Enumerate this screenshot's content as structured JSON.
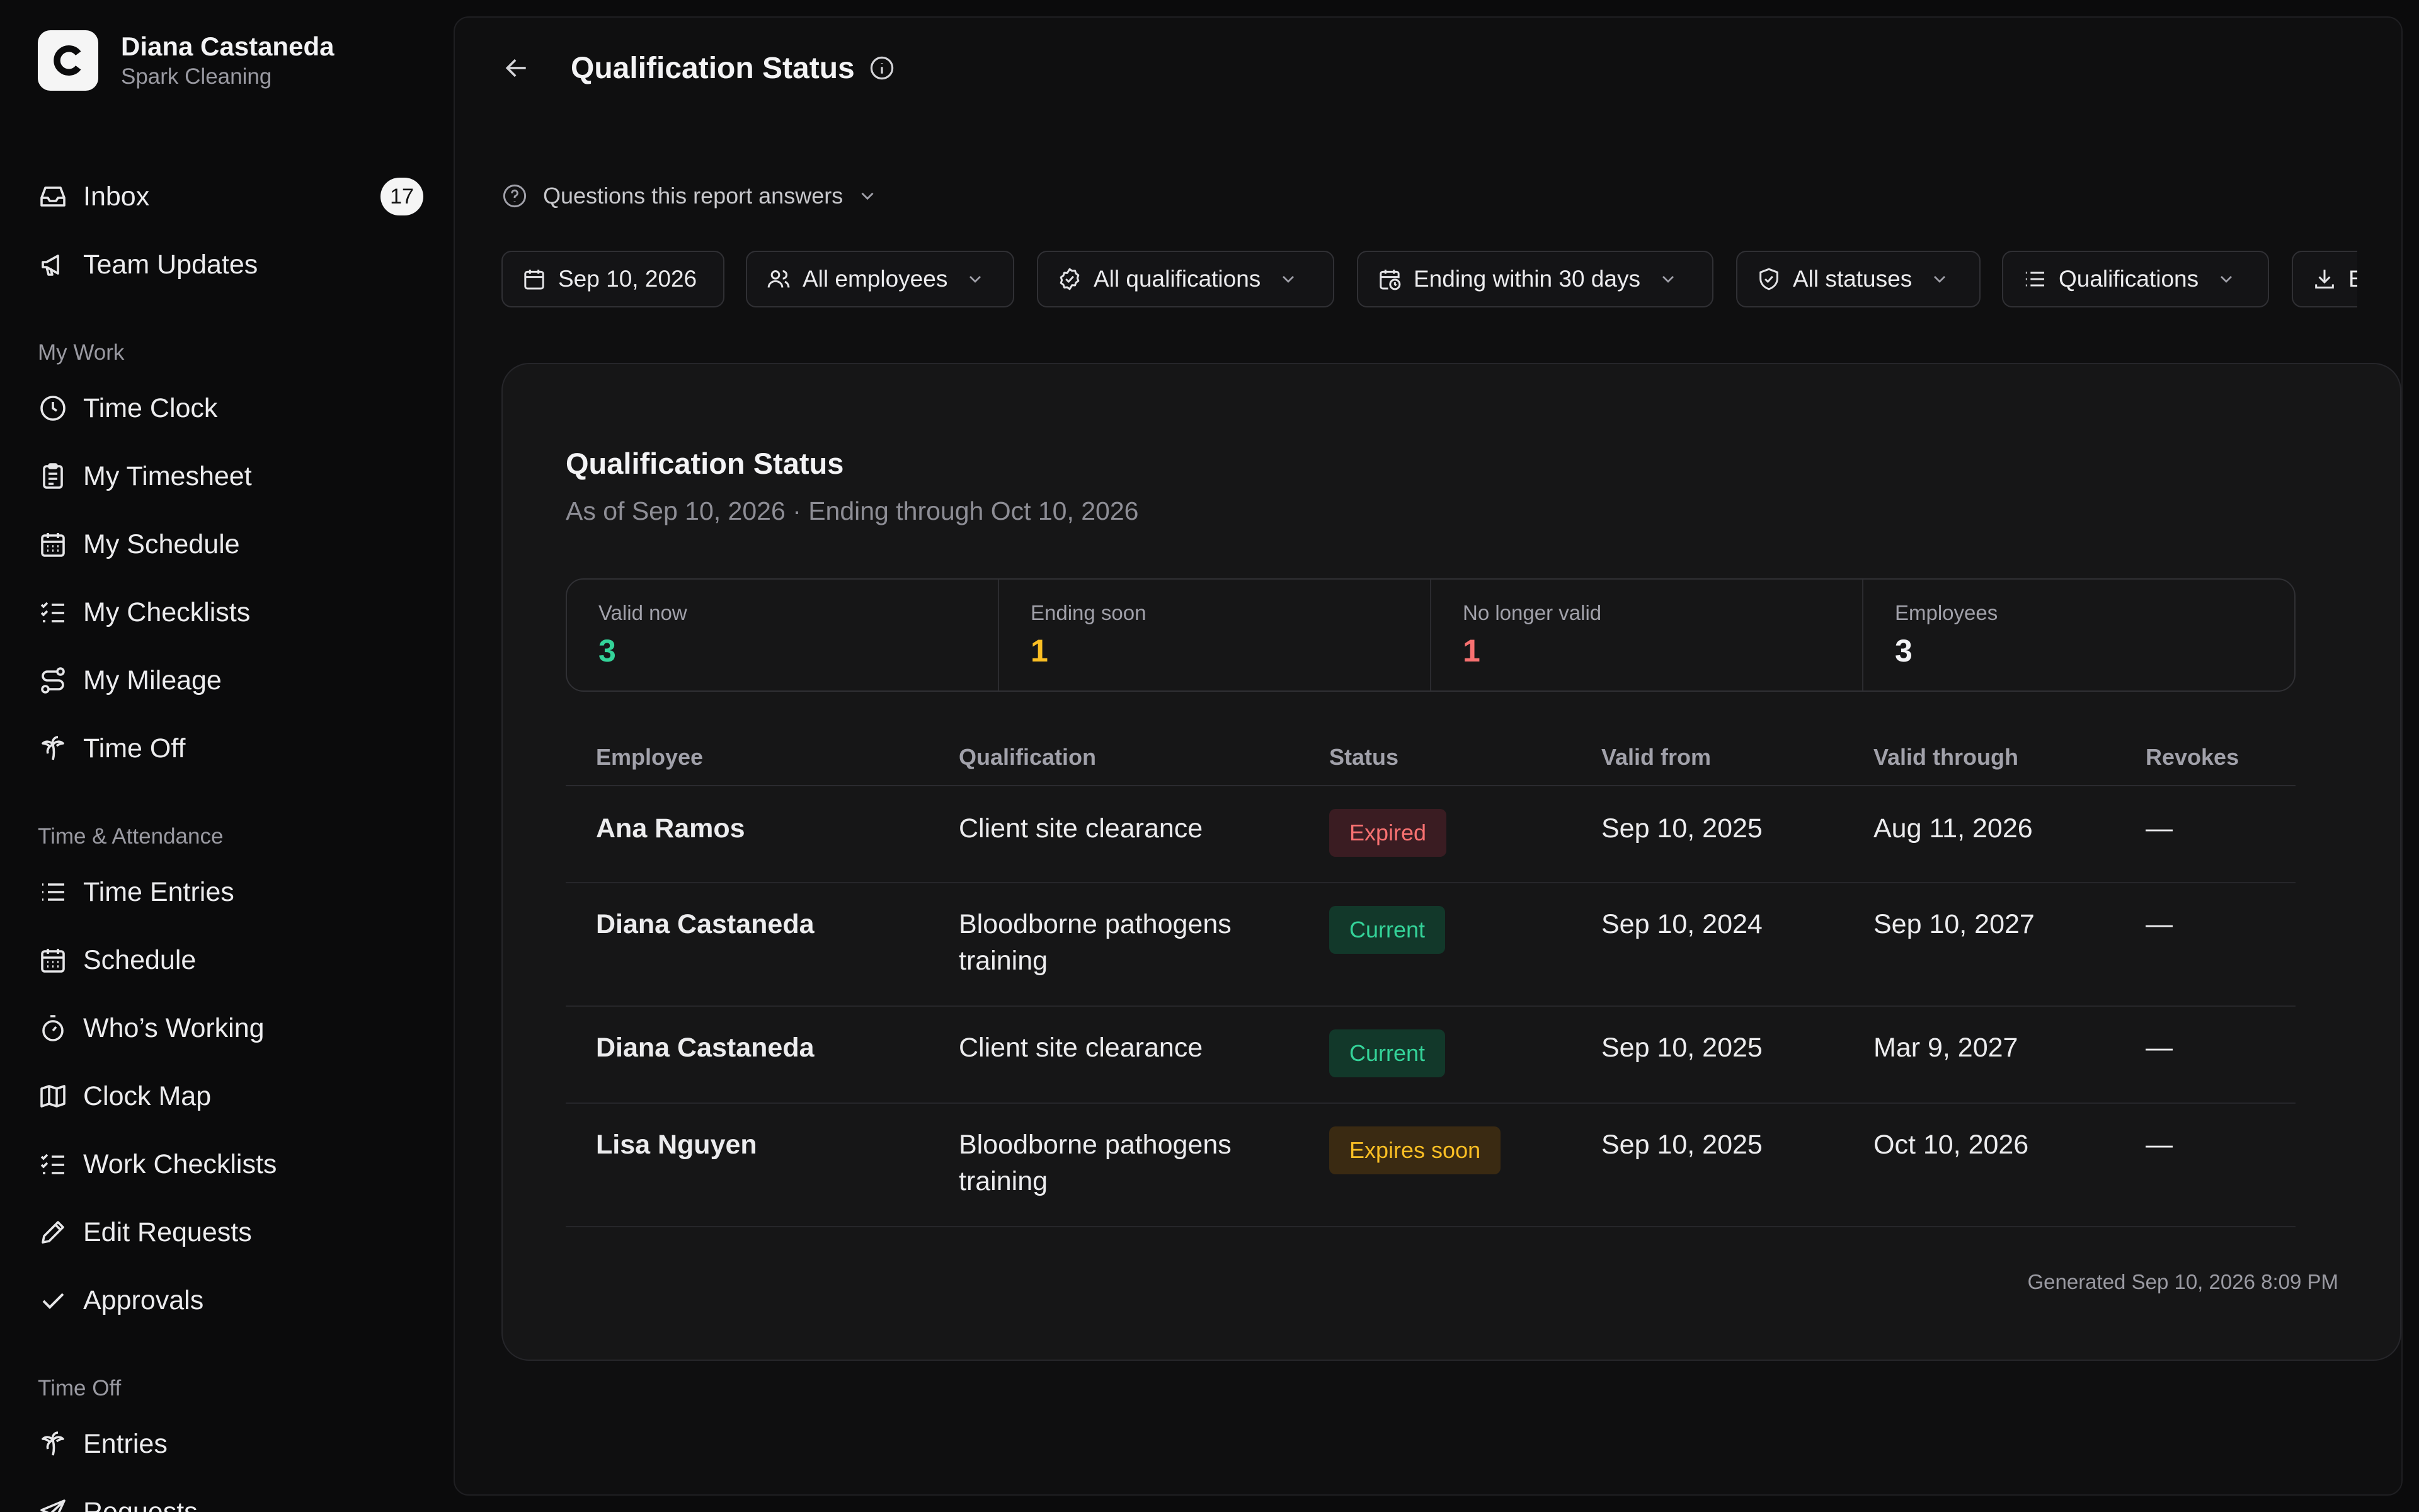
{
  "brand": {
    "name": "Diana Castaneda",
    "org": "Spark Cleaning",
    "logo_icon": "c-logo-icon"
  },
  "nav": {
    "top": [
      {
        "label": "Inbox",
        "icon": "inbox-icon",
        "badge": "17"
      },
      {
        "label": "Team Updates",
        "icon": "megaphone-icon"
      }
    ],
    "sections": [
      {
        "label": "My Work",
        "items": [
          {
            "label": "Time Clock",
            "icon": "clock-icon"
          },
          {
            "label": "My Timesheet",
            "icon": "clipboard-icon"
          },
          {
            "label": "My Schedule",
            "icon": "calendar-icon"
          },
          {
            "label": "My Checklists",
            "icon": "checklist-icon"
          },
          {
            "label": "My Mileage",
            "icon": "route-icon"
          },
          {
            "label": "Time Off",
            "icon": "palm-tree-icon"
          }
        ]
      },
      {
        "label": "Time & Attendance",
        "items": [
          {
            "label": "Time Entries",
            "icon": "list-icon"
          },
          {
            "label": "Schedule",
            "icon": "calendar-icon"
          },
          {
            "label": "Who’s Working",
            "icon": "stopwatch-icon"
          },
          {
            "label": "Clock Map",
            "icon": "map-icon"
          },
          {
            "label": "Work Checklists",
            "icon": "checklist-icon"
          },
          {
            "label": "Edit Requests",
            "icon": "pencil-icon"
          },
          {
            "label": "Approvals",
            "icon": "check-icon"
          }
        ]
      },
      {
        "label": "Time Off",
        "items": [
          {
            "label": "Entries",
            "icon": "palm-tree-icon"
          },
          {
            "label": "Requests",
            "icon": "send-icon"
          }
        ]
      }
    ]
  },
  "header": {
    "title": "Qualification Status"
  },
  "questions": {
    "label": "Questions this report answers"
  },
  "filters": [
    {
      "label": "Sep 10, 2026",
      "icon": "calendar-icon"
    },
    {
      "label": "All employees",
      "icon": "users-icon"
    },
    {
      "label": "All qualifications",
      "icon": "badge-check-icon"
    },
    {
      "label": "Ending within 30 days",
      "icon": "calendar-clock-icon"
    },
    {
      "label": "All statuses",
      "icon": "shield-check-icon"
    },
    {
      "label": "Qualifications",
      "icon": "list-icon"
    },
    {
      "label": "E",
      "icon": "download-icon"
    }
  ],
  "report": {
    "title": "Qualification Status",
    "subtitle": "As of Sep 10, 2026 · Ending through Oct 10, 2026",
    "stats": [
      {
        "label": "Valid now",
        "value": "3",
        "color": "#34d399"
      },
      {
        "label": "Ending soon",
        "value": "1",
        "color": "#fbbf24"
      },
      {
        "label": "No longer valid",
        "value": "1",
        "color": "#f87171"
      },
      {
        "label": "Employees",
        "value": "3",
        "color": "#f3f3f5"
      }
    ],
    "columns": [
      "Employee",
      "Qualification",
      "Status",
      "Valid from",
      "Valid through",
      "Revokes"
    ],
    "rows": [
      {
        "employee": "Ana Ramos",
        "qualification": [
          "Client site clearance"
        ],
        "status": "Expired",
        "valid_from": "Sep 10, 2025",
        "valid_through": "Aug 11, 2026",
        "revokes": "—"
      },
      {
        "employee": "Diana Castaneda",
        "qualification": [
          "Bloodborne pathogens",
          "training"
        ],
        "status": "Current",
        "valid_from": "Sep 10, 2024",
        "valid_through": "Sep 10, 2027",
        "revokes": "—"
      },
      {
        "employee": "Diana Castaneda",
        "qualification": [
          "Client site clearance"
        ],
        "status": "Current",
        "valid_from": "Sep 10, 2025",
        "valid_through": "Mar 9, 2027",
        "revokes": "—"
      },
      {
        "employee": "Lisa Nguyen",
        "qualification": [
          "Bloodborne pathogens",
          "training"
        ],
        "status": "Expires soon",
        "valid_from": "Sep 10, 2025",
        "valid_through": "Oct 10, 2026",
        "revokes": "—"
      }
    ],
    "generated": "Generated Sep 10, 2026 8:09 PM"
  }
}
